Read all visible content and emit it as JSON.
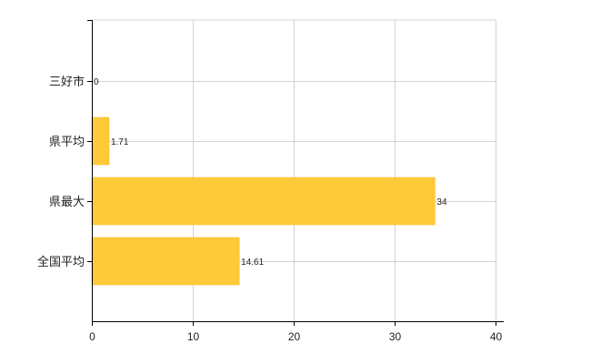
{
  "chart_data": {
    "type": "bar",
    "orientation": "horizontal",
    "categories": [
      "三好市",
      "県平均",
      "県最大",
      "全国平均"
    ],
    "values": [
      0,
      1.71,
      34,
      14.61
    ],
    "value_labels": [
      "0",
      "1.71",
      "34",
      "14.61"
    ],
    "xlim": [
      0,
      40
    ],
    "x_ticks": [
      0,
      10,
      20,
      30,
      40
    ],
    "x_tick_labels": [
      "0",
      "10",
      "20",
      "30",
      "40"
    ],
    "grid": true,
    "legend": "none",
    "colors": {
      "bar": "#FFCA3A",
      "bar_stroke": "#F2B620",
      "grid": "#D3D3D3",
      "axis": "#000000"
    }
  }
}
